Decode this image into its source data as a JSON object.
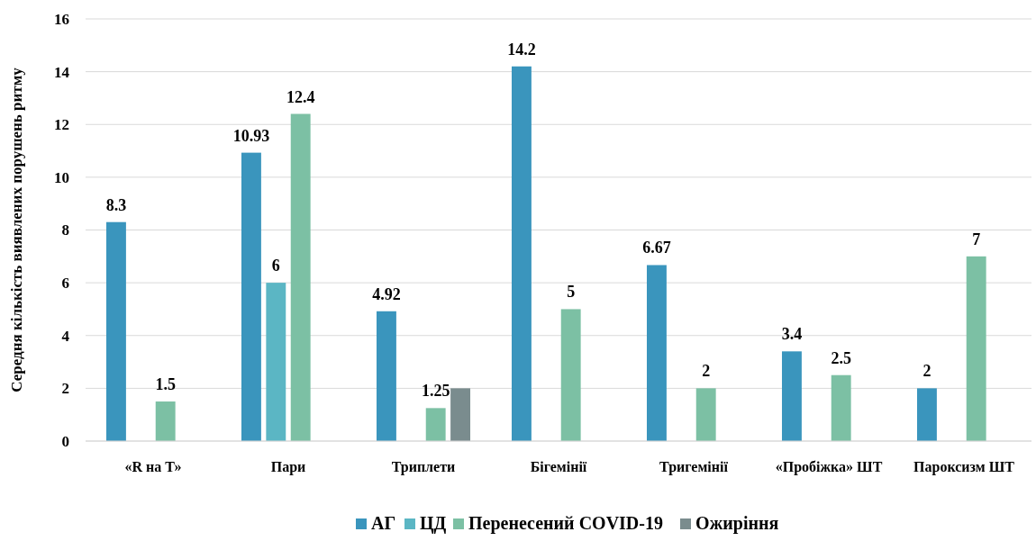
{
  "chart_data": {
    "type": "bar",
    "ylabel": "Середня кількість виявлених порушень ритму",
    "categories": [
      "«R на Т»",
      "Пари",
      "Триплети",
      "Бігемінії",
      "Тригемінії",
      "«Пробіжка» ШТ",
      "Пароксизм ШТ"
    ],
    "series": [
      {
        "name": "АГ",
        "color": "#3a95bd",
        "values": [
          8.3,
          10.93,
          4.92,
          14.2,
          6.67,
          3.4,
          2
        ],
        "value_labels": [
          "8.3",
          "10.93",
          "4.92",
          "14.2",
          "6.67",
          "3.4",
          "2"
        ]
      },
      {
        "name": "ЦД",
        "color": "#5bb6c4",
        "values": [
          null,
          6,
          null,
          null,
          null,
          null,
          null
        ],
        "value_labels": [
          null,
          "6",
          null,
          null,
          null,
          null,
          null
        ]
      },
      {
        "name": "Перенесений COVID-19",
        "color": "#7cc0a4",
        "values": [
          1.5,
          12.4,
          1.25,
          5,
          2,
          2.5,
          7
        ],
        "value_labels": [
          "1.5",
          "12.4",
          "1.25",
          "5",
          "2",
          "2.5",
          "7"
        ]
      },
      {
        "name": "Ожиріння",
        "color": "#7a8c8e",
        "values": [
          null,
          null,
          2,
          null,
          null,
          null,
          null
        ],
        "value_labels": [
          null,
          null,
          null,
          null,
          null,
          null,
          null
        ]
      }
    ],
    "ylim": [
      0,
      16
    ],
    "yticks": [
      0,
      2,
      4,
      6,
      8,
      10,
      12,
      14,
      16
    ],
    "grid": "y",
    "legend": "bottom"
  }
}
